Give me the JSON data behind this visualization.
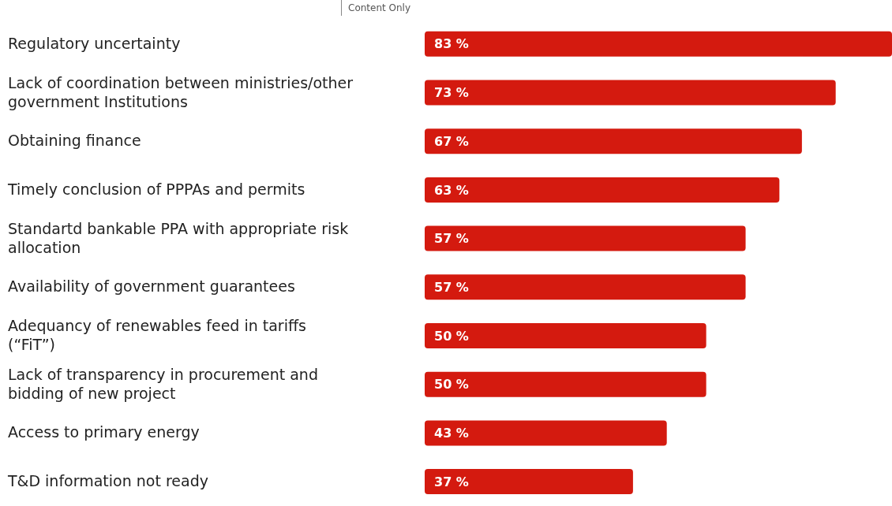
{
  "chart_data": {
    "type": "bar",
    "orientation": "horizontal",
    "categories": [
      "Regulatory uncertainty",
      "Lack of coordination between ministries/other government Institutions",
      "Obtaining finance",
      "Timely conclusion of PPPAs and permits",
      "Standartd bankable PPA with appropriate risk allocation",
      "Availability of government guarantees",
      "Adequancy of renewables feed in tariffs (“FiT”)",
      "Lack of transparency in procurement and bidding of new project",
      "Access to primary energy",
      "T&D information not ready"
    ],
    "values": [
      83,
      73,
      67,
      63,
      57,
      57,
      50,
      50,
      43,
      37
    ],
    "value_labels": [
      "83 %",
      "73 %",
      "67 %",
      "63 %",
      "57 %",
      "57 %",
      "50 %",
      "50 %",
      "43 %",
      "37 %"
    ],
    "color": "#d41a0f",
    "annotations": [
      "Content Only"
    ],
    "legend": false,
    "grid": false
  }
}
